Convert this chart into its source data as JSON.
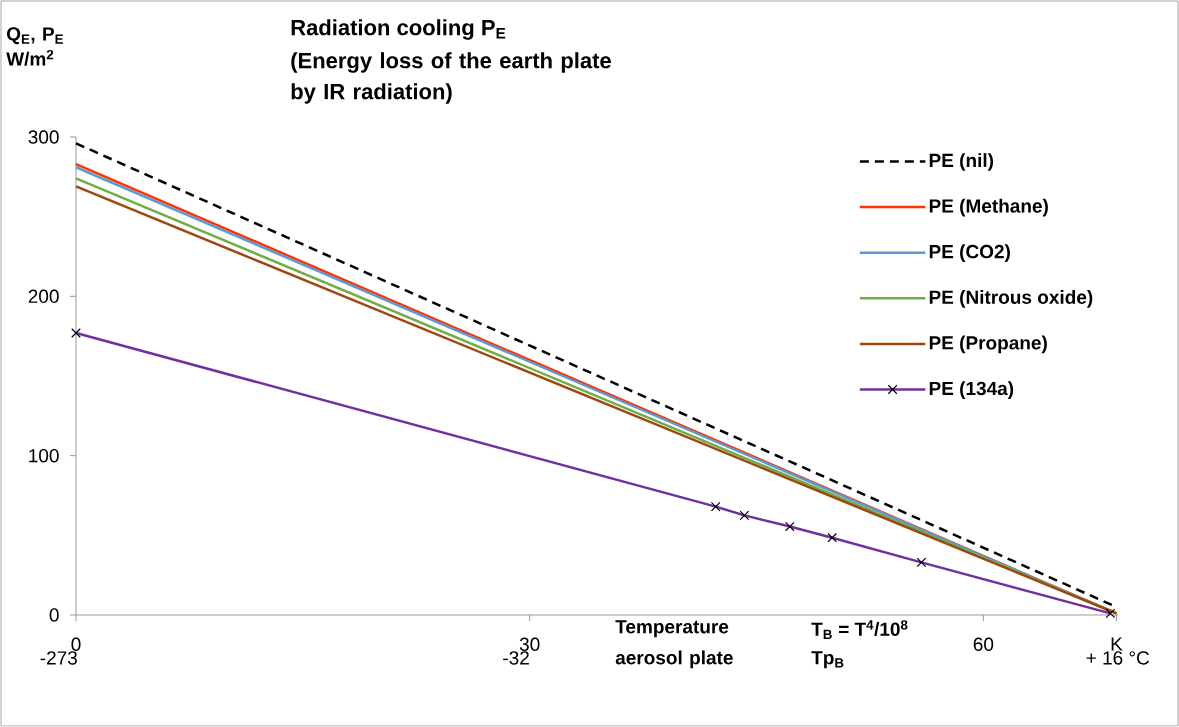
{
  "chart_data": {
    "type": "line",
    "title": "Radiation cooling P$_{E}$",
    "subtitle": "(Energy loss of the earth plate by IR radiation)",
    "ylabel": "Q$_{E}$, P$_{E}$ W/m$^{2}$",
    "xlabel": "Temperature aerosol plate",
    "annotations": [
      "T$_{B}$ = T$^{4}$/10$^{8}$",
      "Tp$_{B}$",
      "-273",
      "-32",
      "+ 16 °C"
    ],
    "xlim": [
      0,
      68.9
    ],
    "xticks": [
      0,
      30,
      60,
      {
        "value": 68.8,
        "label": "K"
      }
    ],
    "ylim": [
      0,
      300
    ],
    "yticks": [
      0,
      100,
      200,
      300
    ],
    "grid": false,
    "legend": "top right",
    "series": [
      {
        "name": "PE (nil)",
        "color": "#000000",
        "line_style": "dashed",
        "x": [
          0,
          68.8
        ],
        "values": [
          296,
          5
        ]
      },
      {
        "name": "PE (Methane)",
        "color": "#ff3300",
        "x": [
          0,
          68.8
        ],
        "values": [
          283,
          1
        ]
      },
      {
        "name": "PE (CO2)",
        "color": "#5b9bd5",
        "x": [
          0,
          68.8
        ],
        "values": [
          281,
          1
        ]
      },
      {
        "name": "PE (Nitrous oxide)",
        "color": "#70ad47",
        "x": [
          0,
          68.8
        ],
        "values": [
          274,
          1
        ]
      },
      {
        "name": "PE (Propane)",
        "color": "#9e480e",
        "x": [
          0,
          68.8
        ],
        "values": [
          269,
          1
        ]
      },
      {
        "name": "PE (134a)",
        "color": "#7030a0",
        "marker": "cross",
        "x": [
          0,
          42.3,
          44.2,
          47.2,
          50.0,
          55.9,
          68.4
        ],
        "values": [
          177,
          68,
          62.5,
          55.5,
          48.5,
          33,
          1
        ]
      }
    ]
  }
}
